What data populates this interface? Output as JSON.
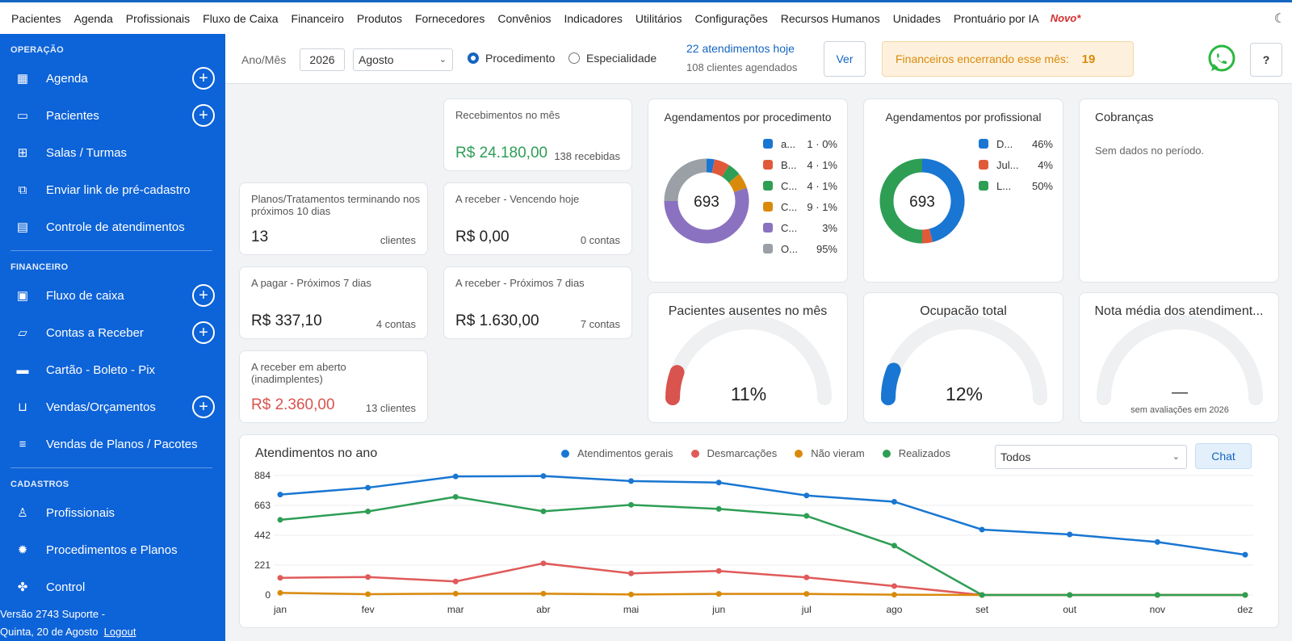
{
  "topnav": [
    "Pacientes",
    "Agenda",
    "Profissionais",
    "Fluxo de Caixa",
    "Financeiro",
    "Produtos",
    "Fornecedores",
    "Convênios",
    "Indicadores",
    "Utilitários",
    "Configurações",
    "Recursos Humanos",
    "Unidades",
    "Prontuário por IA"
  ],
  "topnav_badge": "Novo*",
  "sidebar": {
    "operacao_title": "OPERAÇÃO",
    "operacao": [
      {
        "label": "Agenda",
        "icon": "calendar-icon"
      },
      {
        "label": "Pacientes",
        "icon": "id-card-icon"
      },
      {
        "label": "Salas / Turmas",
        "icon": "grid-icon"
      },
      {
        "label": "Enviar link de pré-cadastro",
        "icon": "external-link-icon"
      },
      {
        "label": "Controle de atendimentos",
        "icon": "document-icon"
      }
    ],
    "financeiro_title": "FINANCEIRO",
    "financeiro": [
      {
        "label": "Fluxo de caixa",
        "icon": "cash-icon"
      },
      {
        "label": "Contas a Receber",
        "icon": "folder-icon"
      },
      {
        "label": "Cartão  -  Boleto  -  Pix",
        "icon": "credit-card-icon"
      },
      {
        "label": "Vendas/Orçamentos",
        "icon": "shopping-bag-icon"
      },
      {
        "label": "Vendas de Planos / Pacotes",
        "icon": "list-plus-icon"
      }
    ],
    "cadastros_title": "CADASTROS",
    "cadastros": [
      {
        "label": "Profissionais",
        "icon": "user-icon"
      },
      {
        "label": "Procedimentos e Planos",
        "icon": "gear-icon"
      },
      {
        "label": "Control",
        "icon": "puzzle-icon"
      }
    ],
    "footer_line1": "Versão  2743  Suporte  -",
    "footer_date": "Quinta, 20 de Agosto",
    "footer_logout": "Logout"
  },
  "filter": {
    "ano_mes_label": "Ano/Mês",
    "year": "2026",
    "month": "Agosto",
    "radio_procedimento": "Procedimento",
    "radio_especialidade": "Especialidade",
    "atendimentos_hoje": "22 atendimentos hoje",
    "clientes_agendados": "108 clientes agendados",
    "ver_button": "Ver",
    "financeiros_label": "Financeiros encerrando esse mês:",
    "financeiros_count": "19",
    "help_button": "?"
  },
  "kpis": {
    "recebimentos": {
      "label": "Recebimentos no mês",
      "value": "R$ 24.180,00",
      "sub": "138 recebidas"
    },
    "planos": {
      "label": "Planos/Tratamentos terminando nos próximos 10 dias",
      "value": "13",
      "sub": "clientes"
    },
    "vencendo": {
      "label": "A receber - Vencendo hoje",
      "value": "R$ 0,00",
      "sub": "0 contas"
    },
    "pagar": {
      "label": "A pagar - Próximos 7 dias",
      "value": "R$ 337,10",
      "sub": "4 contas"
    },
    "receber7": {
      "label": "A receber - Próximos 7 dias",
      "value": "R$ 1.630,00",
      "sub": "7 contas"
    },
    "aberto": {
      "label": "A receber em aberto (inadimplentes)",
      "value": "R$ 2.360,00",
      "sub": "13 clientes"
    }
  },
  "donut_procedimento": {
    "title": "Agendamentos por procedimento",
    "total": "693",
    "legend": [
      {
        "label": "a...",
        "value": "1 · 0%",
        "color": "#1976d2"
      },
      {
        "label": "B...",
        "value": "4 · 1%",
        "color": "#e05a3a"
      },
      {
        "label": "C...",
        "value": "4 · 1%",
        "color": "#2e9e55"
      },
      {
        "label": "C...",
        "value": "9 · 1%",
        "color": "#d98a0b"
      },
      {
        "label": "C...",
        "value": "3%",
        "color": "#8a72c0"
      },
      {
        "label": "O...",
        "value": "95%",
        "color": "#9aa0a6"
      }
    ]
  },
  "donut_profissional": {
    "title": "Agendamentos por profissional",
    "total": "693",
    "legend": [
      {
        "label": "D...",
        "value": "46%",
        "color": "#1976d2"
      },
      {
        "label": "Jul...",
        "value": "4%",
        "color": "#e05a3a"
      },
      {
        "label": "L...",
        "value": "50%",
        "color": "#2e9e55"
      }
    ]
  },
  "cobrancas": {
    "title": "Cobranças",
    "empty": "Sem dados no período."
  },
  "gauges": [
    {
      "title": "Pacientes ausentes no mês",
      "value": "11%",
      "fraction": 0.11,
      "color": "#d9534f"
    },
    {
      "title": "Ocupação total",
      "value": "12%",
      "fraction": 0.12,
      "color": "#1976d2"
    },
    {
      "title": "Nota média dos atendiment...",
      "value": "—",
      "fraction": 0,
      "color": "#cccccc",
      "sub": "sem avaliações em 2026"
    }
  ],
  "chart_data": {
    "type": "line",
    "title": "Atendimentos no ano",
    "categories": [
      "jan",
      "fev",
      "mar",
      "abr",
      "mai",
      "jun",
      "jul",
      "ago",
      "set",
      "out",
      "nov",
      "dez"
    ],
    "yticks": [
      0,
      221,
      442,
      663,
      884
    ],
    "ylim": [
      0,
      884
    ],
    "series": [
      {
        "name": "Atendimentos gerais",
        "color": "#1976d2",
        "values": [
          743,
          794,
          877,
          880,
          843,
          832,
          736,
          690,
          484,
          448,
          392,
          298
        ]
      },
      {
        "name": "Desmarcações",
        "color": "#e05a5a",
        "values": [
          127,
          133,
          100,
          234,
          160,
          178,
          130,
          66,
          0,
          0,
          0,
          0
        ]
      },
      {
        "name": "Não vieram",
        "color": "#d98a0b",
        "values": [
          16,
          6,
          10,
          10,
          4,
          8,
          8,
          2,
          0,
          0,
          0,
          0
        ]
      },
      {
        "name": "Realizados",
        "color": "#2e9e55",
        "values": [
          556,
          618,
          726,
          619,
          667,
          637,
          585,
          365,
          0,
          0,
          0,
          0
        ]
      }
    ],
    "filter_value": "Todos",
    "chat_button": "Chat"
  }
}
